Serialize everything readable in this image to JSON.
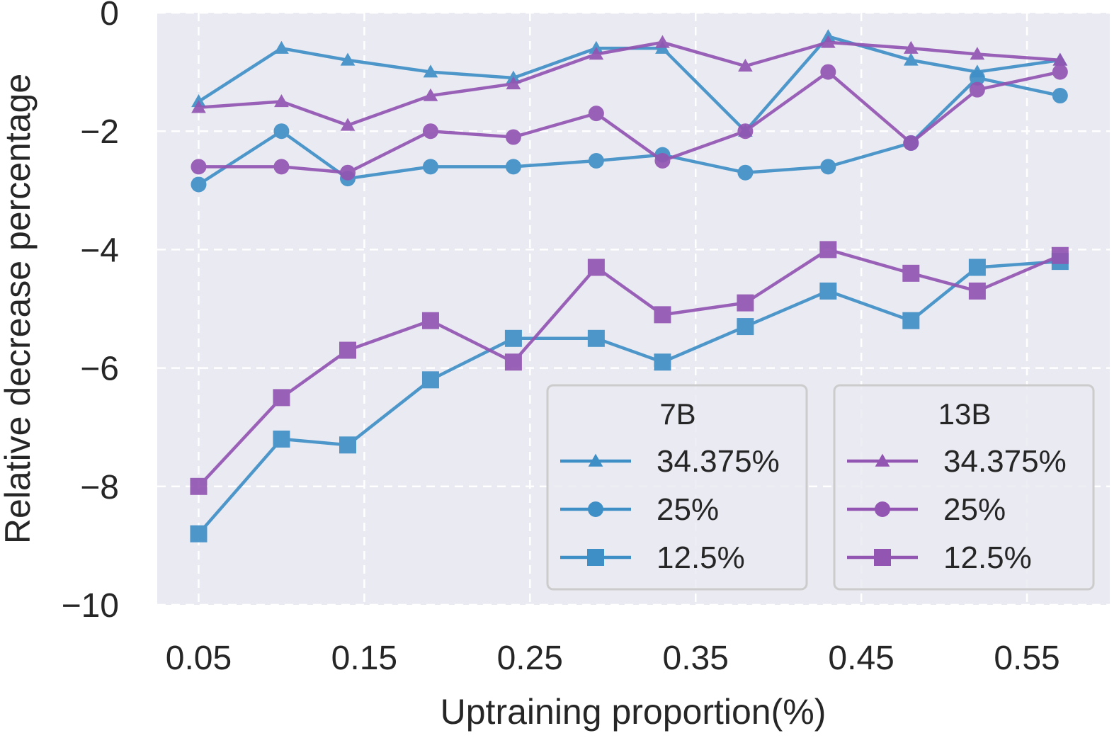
{
  "chart_data": {
    "type": "line",
    "xlabel": "Uptraining proportion(%)",
    "ylabel": "Relative decrease percentage",
    "x": [
      0.05,
      0.1,
      0.14,
      0.19,
      0.24,
      0.29,
      0.33,
      0.38,
      0.43,
      0.48,
      0.52,
      0.57
    ],
    "xlim": [
      0.025,
      0.6
    ],
    "ylim": [
      -10,
      0
    ],
    "xticks": [
      0.05,
      0.15,
      0.25,
      0.35,
      0.45,
      0.55
    ],
    "xtick_labels": [
      "0.05",
      "0.15",
      "0.25",
      "0.35",
      "0.45",
      "0.55"
    ],
    "yticks": [
      0,
      -2,
      -4,
      -6,
      -8,
      -10
    ],
    "ytick_labels": [
      "0",
      "−2",
      "−4",
      "−6",
      "−8",
      "−10"
    ],
    "grid": true,
    "background": "#eaeaf2",
    "legend_placement": "lower-right",
    "groups": [
      {
        "title": "7B",
        "color": "#3f8fc7"
      },
      {
        "title": "13B",
        "color": "#9355b2"
      }
    ],
    "series": [
      {
        "name": "34.375%",
        "group": "7B",
        "marker": "triangle",
        "color": "#3f8fc7",
        "values": [
          -1.5,
          -0.6,
          -0.8,
          -1.0,
          -1.1,
          -0.6,
          -0.6,
          -2.0,
          -0.4,
          -0.8,
          -1.0,
          -0.8
        ]
      },
      {
        "name": "25%",
        "group": "7B",
        "marker": "circle",
        "color": "#3f8fc7",
        "values": [
          -2.9,
          -2.0,
          -2.8,
          -2.6,
          -2.6,
          -2.5,
          -2.4,
          -2.7,
          -2.6,
          -2.2,
          -1.1,
          -1.4
        ]
      },
      {
        "name": "12.5%",
        "group": "7B",
        "marker": "square",
        "color": "#3f8fc7",
        "values": [
          -8.8,
          -7.2,
          -7.3,
          -6.2,
          -5.5,
          -5.5,
          -5.9,
          -5.3,
          -4.7,
          -5.2,
          -4.3,
          -4.2
        ]
      },
      {
        "name": "34.375%",
        "group": "13B",
        "marker": "triangle",
        "color": "#9355b2",
        "values": [
          -1.6,
          -1.5,
          -1.9,
          -1.4,
          -1.2,
          -0.7,
          -0.5,
          -0.9,
          -0.5,
          -0.6,
          -0.7,
          -0.8
        ]
      },
      {
        "name": "25%",
        "group": "13B",
        "marker": "circle",
        "color": "#9355b2",
        "values": [
          -2.6,
          -2.6,
          -2.7,
          -2.0,
          -2.1,
          -1.7,
          -2.5,
          -2.0,
          -1.0,
          -2.2,
          -1.3,
          -1.0
        ]
      },
      {
        "name": "12.5%",
        "group": "13B",
        "marker": "square",
        "color": "#9355b2",
        "values": [
          -8.0,
          -6.5,
          -5.7,
          -5.2,
          -5.9,
          -4.3,
          -5.1,
          -4.9,
          -4.0,
          -4.4,
          -4.7,
          -4.1
        ]
      }
    ]
  }
}
